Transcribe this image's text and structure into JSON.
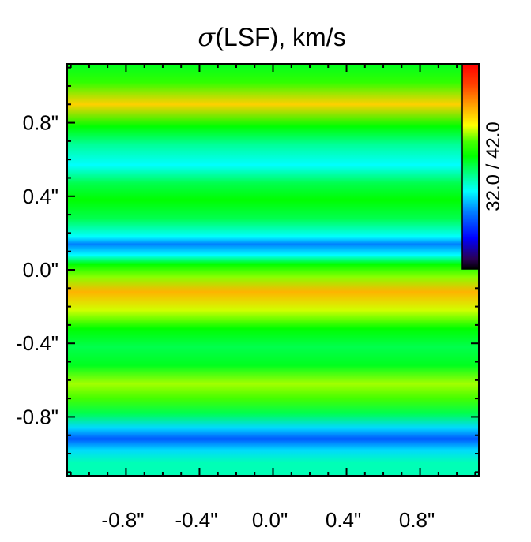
{
  "chart_data": {
    "type": "heatmap",
    "title": {
      "symbol": "σ",
      "text": "(LSF), km/s"
    },
    "xlim": [
      -1.12,
      1.12
    ],
    "ylim": [
      -1.12,
      1.12
    ],
    "x_ticks": [
      {
        "value": -0.8,
        "label": "-0.8\""
      },
      {
        "value": -0.4,
        "label": "-0.4\""
      },
      {
        "value": 0.0,
        "label": "0.0\""
      },
      {
        "value": 0.4,
        "label": "0.4\""
      },
      {
        "value": 0.8,
        "label": "0.8\""
      }
    ],
    "y_ticks": [
      {
        "value": 0.8,
        "label": "0.8\""
      },
      {
        "value": 0.4,
        "label": "0.4\""
      },
      {
        "value": 0.0,
        "label": "0.0\""
      },
      {
        "value": -0.4,
        "label": "-0.4\""
      },
      {
        "value": -0.8,
        "label": "-0.8\""
      }
    ],
    "minor_tick_step": 0.1,
    "colorbar": {
      "label": "32.0 / 42.0",
      "min": 32.0,
      "max": 42.0,
      "placement": "top-right, inside plot"
    },
    "colormap_stops": [
      {
        "t": 0.0,
        "color": "#000000"
      },
      {
        "t": 0.05,
        "color": "#2a0055"
      },
      {
        "t": 0.15,
        "color": "#0000ff"
      },
      {
        "t": 0.28,
        "color": "#0080ff"
      },
      {
        "t": 0.38,
        "color": "#00ffff"
      },
      {
        "t": 0.45,
        "color": "#00ff99"
      },
      {
        "t": 0.55,
        "color": "#00ff00"
      },
      {
        "t": 0.62,
        "color": "#44ff00"
      },
      {
        "t": 0.7,
        "color": "#ffff00"
      },
      {
        "t": 0.8,
        "color": "#ffa000"
      },
      {
        "t": 0.9,
        "color": "#ff4000"
      },
      {
        "t": 1.0,
        "color": "#ff0000"
      }
    ],
    "bands_note": "sigma varies only with y; profile sampled along y",
    "y_profile": [
      {
        "y": 1.12,
        "v": 37.3
      },
      {
        "y": 1.02,
        "v": 38.0
      },
      {
        "y": 0.9,
        "v": 39.5
      },
      {
        "y": 0.78,
        "v": 37.5
      },
      {
        "y": 0.68,
        "v": 36.5
      },
      {
        "y": 0.57,
        "v": 35.8
      },
      {
        "y": 0.47,
        "v": 37.0
      },
      {
        "y": 0.38,
        "v": 37.5
      },
      {
        "y": 0.28,
        "v": 37.0
      },
      {
        "y": 0.18,
        "v": 35.8
      },
      {
        "y": 0.14,
        "v": 34.8
      },
      {
        "y": 0.08,
        "v": 35.8
      },
      {
        "y": 0.03,
        "v": 37.5
      },
      {
        "y": -0.04,
        "v": 38.5
      },
      {
        "y": -0.12,
        "v": 39.8
      },
      {
        "y": -0.22,
        "v": 38.8
      },
      {
        "y": -0.32,
        "v": 37.5
      },
      {
        "y": -0.42,
        "v": 37.0
      },
      {
        "y": -0.52,
        "v": 37.3
      },
      {
        "y": -0.62,
        "v": 38.6
      },
      {
        "y": -0.7,
        "v": 38.2
      },
      {
        "y": -0.78,
        "v": 37.0
      },
      {
        "y": -0.86,
        "v": 35.5
      },
      {
        "y": -0.92,
        "v": 34.4
      },
      {
        "y": -0.98,
        "v": 35.5
      },
      {
        "y": -1.05,
        "v": 36.3
      },
      {
        "y": -1.12,
        "v": 36.3
      }
    ]
  }
}
